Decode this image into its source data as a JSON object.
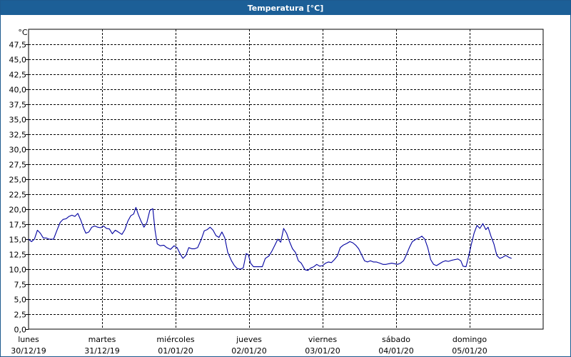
{
  "window": {
    "title": "Temperatura [°C]"
  },
  "chart_data": {
    "type": "line",
    "title": "Temperatura [°C]",
    "ylabel": "°C",
    "xlabel": "",
    "ylim": [
      0,
      50
    ],
    "yticks": [
      "0,0",
      "2,5",
      "5,0",
      "7,5",
      "10,0",
      "12,5",
      "15,0",
      "17,5",
      "20,0",
      "22,5",
      "25,0",
      "27,5",
      "30,0",
      "32,5",
      "35,0",
      "37,5",
      "40,0",
      "42,5",
      "45,0",
      "47,5"
    ],
    "xlim": [
      0,
      7
    ],
    "x_unit": "days from lunes 30/12/19 00:00",
    "xticks": [
      {
        "day": "lunes",
        "date": "30/12/19"
      },
      {
        "day": "martes",
        "date": "31/12/19"
      },
      {
        "day": "miércoles",
        "date": "01/01/20"
      },
      {
        "day": "jueves",
        "date": "02/01/20"
      },
      {
        "day": "viernes",
        "date": "03/01/20"
      },
      {
        "day": "sábado",
        "date": "04/01/20"
      },
      {
        "day": "domingo",
        "date": "05/01/20"
      }
    ],
    "grid": true,
    "line_color": "#0000a0",
    "series": [
      {
        "name": "",
        "points": [
          [
            0.0,
            15.0
          ],
          [
            0.04,
            14.6
          ],
          [
            0.08,
            15.0
          ],
          [
            0.12,
            16.5
          ],
          [
            0.16,
            16.0
          ],
          [
            0.2,
            15.2
          ],
          [
            0.24,
            15.2
          ],
          [
            0.28,
            15.0
          ],
          [
            0.34,
            15.0
          ],
          [
            0.39,
            16.6
          ],
          [
            0.43,
            17.8
          ],
          [
            0.47,
            18.3
          ],
          [
            0.51,
            18.4
          ],
          [
            0.55,
            18.8
          ],
          [
            0.59,
            19.0
          ],
          [
            0.63,
            18.8
          ],
          [
            0.67,
            19.3
          ],
          [
            0.71,
            18.2
          ],
          [
            0.75,
            16.8
          ],
          [
            0.78,
            16.0
          ],
          [
            0.82,
            16.2
          ],
          [
            0.86,
            17.0
          ],
          [
            0.9,
            17.2
          ],
          [
            0.94,
            17.0
          ],
          [
            0.98,
            16.9
          ],
          [
            1.02,
            17.2
          ],
          [
            1.06,
            16.8
          ],
          [
            1.1,
            16.7
          ],
          [
            1.14,
            15.9
          ],
          [
            1.18,
            16.5
          ],
          [
            1.22,
            16.2
          ],
          [
            1.27,
            15.8
          ],
          [
            1.31,
            16.6
          ],
          [
            1.35,
            18.0
          ],
          [
            1.39,
            18.9
          ],
          [
            1.43,
            19.2
          ],
          [
            1.46,
            20.3
          ],
          [
            1.49,
            19.2
          ],
          [
            1.53,
            18.0
          ],
          [
            1.57,
            17.0
          ],
          [
            1.61,
            17.8
          ],
          [
            1.65,
            19.8
          ],
          [
            1.69,
            20.1
          ],
          [
            1.72,
            16.5
          ],
          [
            1.75,
            14.2
          ],
          [
            1.79,
            13.9
          ],
          [
            1.84,
            14.0
          ],
          [
            1.88,
            13.6
          ],
          [
            1.93,
            13.3
          ],
          [
            1.98,
            13.9
          ],
          [
            2.02,
            13.6
          ],
          [
            2.06,
            12.6
          ],
          [
            2.1,
            11.8
          ],
          [
            2.14,
            12.3
          ],
          [
            2.18,
            13.6
          ],
          [
            2.22,
            13.4
          ],
          [
            2.26,
            13.4
          ],
          [
            2.3,
            13.6
          ],
          [
            2.35,
            15.0
          ],
          [
            2.39,
            16.4
          ],
          [
            2.43,
            16.6
          ],
          [
            2.47,
            17.0
          ],
          [
            2.51,
            16.5
          ],
          [
            2.55,
            15.6
          ],
          [
            2.59,
            15.3
          ],
          [
            2.63,
            16.2
          ],
          [
            2.67,
            15.2
          ],
          [
            2.71,
            12.8
          ],
          [
            2.76,
            11.4
          ],
          [
            2.8,
            10.6
          ],
          [
            2.84,
            10.1
          ],
          [
            2.88,
            10.0
          ],
          [
            2.92,
            10.2
          ],
          [
            2.96,
            12.6
          ],
          [
            2.99,
            12.4
          ],
          [
            3.02,
            11.0
          ],
          [
            3.06,
            10.4
          ],
          [
            3.1,
            10.4
          ],
          [
            3.14,
            10.4
          ],
          [
            3.18,
            10.4
          ],
          [
            3.22,
            11.8
          ],
          [
            3.27,
            12.2
          ],
          [
            3.31,
            13.0
          ],
          [
            3.35,
            14.0
          ],
          [
            3.39,
            15.0
          ],
          [
            3.43,
            14.5
          ],
          [
            3.47,
            16.8
          ],
          [
            3.51,
            16.0
          ],
          [
            3.55,
            14.6
          ],
          [
            3.59,
            13.4
          ],
          [
            3.63,
            12.8
          ],
          [
            3.67,
            11.4
          ],
          [
            3.71,
            11.0
          ],
          [
            3.76,
            9.9
          ],
          [
            3.8,
            9.8
          ],
          [
            3.84,
            10.2
          ],
          [
            3.88,
            10.4
          ],
          [
            3.92,
            10.8
          ],
          [
            3.96,
            10.5
          ],
          [
            4.0,
            10.6
          ],
          [
            4.04,
            11.0
          ],
          [
            4.08,
            11.2
          ],
          [
            4.12,
            11.1
          ],
          [
            4.16,
            11.6
          ],
          [
            4.2,
            12.2
          ],
          [
            4.24,
            13.6
          ],
          [
            4.28,
            14.0
          ],
          [
            4.33,
            14.3
          ],
          [
            4.37,
            14.6
          ],
          [
            4.41,
            14.4
          ],
          [
            4.45,
            14.0
          ],
          [
            4.49,
            13.4
          ],
          [
            4.53,
            12.4
          ],
          [
            4.57,
            11.4
          ],
          [
            4.61,
            11.2
          ],
          [
            4.65,
            11.4
          ],
          [
            4.69,
            11.2
          ],
          [
            4.73,
            11.2
          ],
          [
            4.78,
            11.0
          ],
          [
            4.82,
            10.8
          ],
          [
            4.86,
            10.8
          ],
          [
            4.9,
            10.9
          ],
          [
            4.94,
            11.0
          ],
          [
            4.98,
            10.9
          ],
          [
            5.02,
            10.8
          ],
          [
            5.06,
            11.0
          ],
          [
            5.1,
            11.4
          ],
          [
            5.14,
            12.4
          ],
          [
            5.18,
            13.6
          ],
          [
            5.22,
            14.6
          ],
          [
            5.27,
            15.0
          ],
          [
            5.31,
            15.2
          ],
          [
            5.35,
            15.5
          ],
          [
            5.39,
            15.0
          ],
          [
            5.43,
            13.6
          ],
          [
            5.47,
            11.6
          ],
          [
            5.51,
            10.8
          ],
          [
            5.55,
            10.6
          ],
          [
            5.59,
            10.9
          ],
          [
            5.63,
            11.2
          ],
          [
            5.67,
            11.4
          ],
          [
            5.71,
            11.3
          ],
          [
            5.76,
            11.5
          ],
          [
            5.8,
            11.6
          ],
          [
            5.84,
            11.7
          ],
          [
            5.88,
            11.4
          ],
          [
            5.91,
            10.5
          ],
          [
            5.95,
            10.4
          ],
          [
            5.98,
            11.8
          ],
          [
            6.02,
            14.0
          ],
          [
            6.06,
            16.0
          ],
          [
            6.1,
            17.3
          ],
          [
            6.14,
            16.8
          ],
          [
            6.18,
            17.6
          ],
          [
            6.22,
            16.6
          ],
          [
            6.25,
            17.0
          ],
          [
            6.29,
            15.5
          ],
          [
            6.33,
            14.2
          ],
          [
            6.37,
            12.3
          ],
          [
            6.41,
            11.8
          ],
          [
            6.45,
            12.0
          ],
          [
            6.49,
            12.3
          ],
          [
            6.53,
            12.0
          ],
          [
            6.57,
            11.8
          ]
        ]
      }
    ]
  }
}
